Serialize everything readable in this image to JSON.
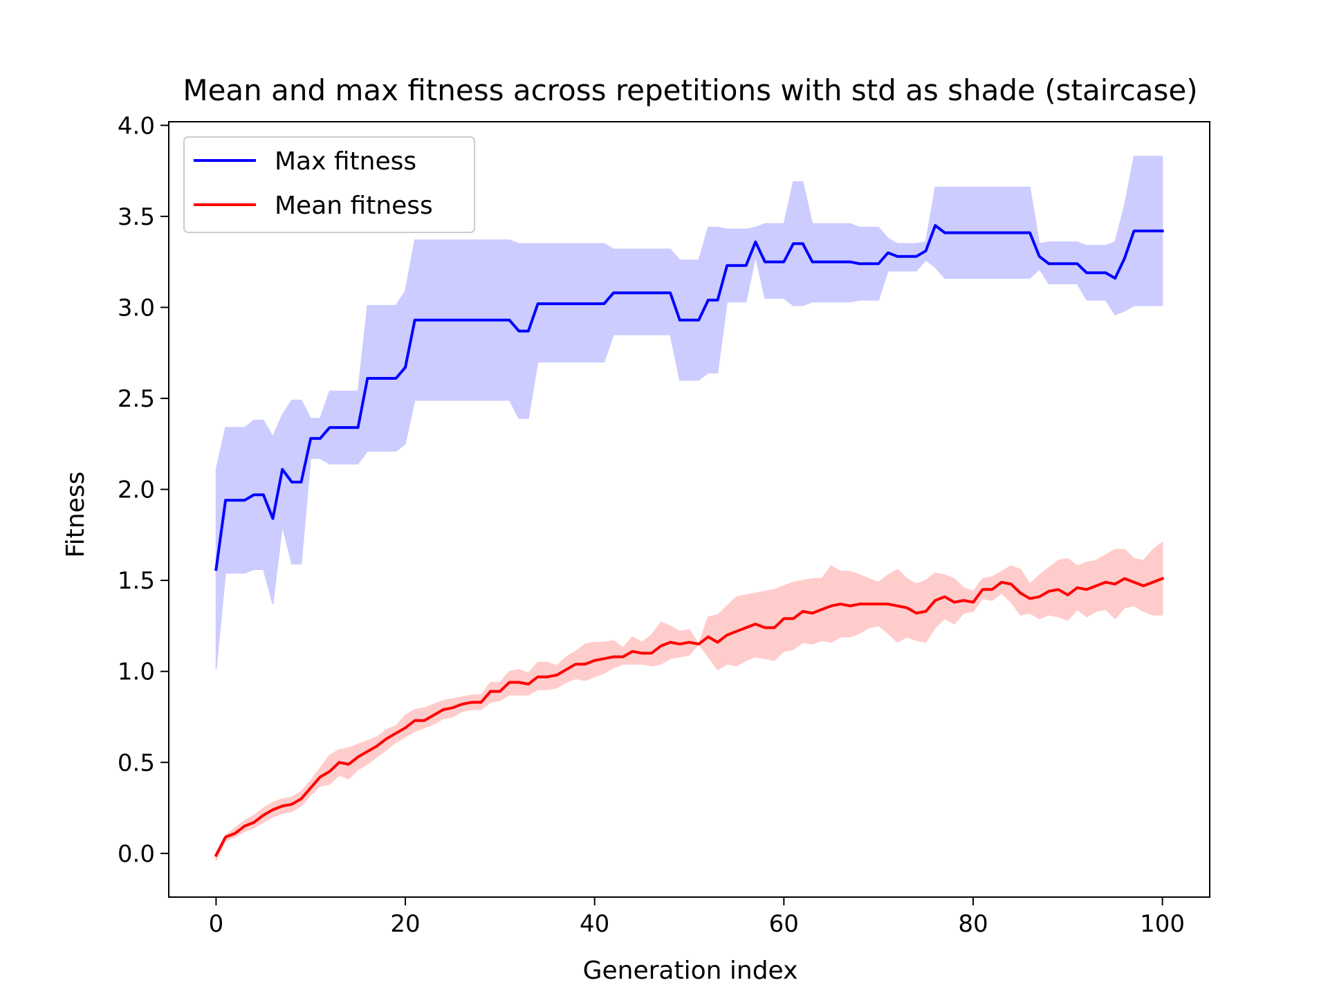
{
  "chart_data": {
    "type": "line",
    "title": "Mean and max fitness across repetitions with std as shade (staircase)",
    "xlabel": "Generation index",
    "ylabel": "Fitness",
    "xlim": [
      -5,
      105
    ],
    "ylim": [
      -0.24,
      4.02
    ],
    "xticks": [
      0,
      20,
      40,
      60,
      80,
      100
    ],
    "yticks": [
      0.0,
      0.5,
      1.0,
      1.5,
      2.0,
      2.5,
      3.0,
      3.5,
      4.0
    ],
    "xtick_labels": [
      "0",
      "20",
      "40",
      "60",
      "80",
      "100"
    ],
    "ytick_labels": [
      "0.0",
      "0.5",
      "1.0",
      "1.5",
      "2.0",
      "2.5",
      "3.0",
      "3.5",
      "4.0"
    ],
    "grid": false,
    "legend": {
      "position": "upper-left",
      "entries": [
        "Max fitness",
        "Mean fitness"
      ]
    },
    "series": [
      {
        "name": "Max fitness",
        "color": "#0000ff",
        "shade_color": "#ccccff",
        "x": [
          0,
          1,
          3,
          4,
          5,
          6,
          7,
          8,
          9,
          10,
          11,
          12,
          15,
          16,
          19,
          20,
          21,
          31,
          32,
          33,
          34,
          37,
          38,
          41,
          42,
          48,
          49,
          51,
          52,
          53,
          54,
          56,
          57,
          58,
          60,
          61,
          62,
          63,
          67,
          68,
          70,
          71,
          72,
          74,
          75,
          76,
          77,
          85,
          86,
          87,
          88,
          91,
          92,
          94,
          95,
          96,
          97,
          100
        ],
        "y": [
          1.56,
          1.94,
          1.94,
          1.97,
          1.97,
          1.84,
          2.11,
          2.04,
          2.04,
          2.28,
          2.28,
          2.34,
          2.34,
          2.61,
          2.61,
          2.67,
          2.93,
          2.93,
          2.87,
          2.87,
          3.02,
          3.02,
          3.02,
          3.02,
          3.08,
          3.08,
          2.93,
          2.93,
          3.04,
          3.04,
          3.23,
          3.23,
          3.36,
          3.25,
          3.25,
          3.35,
          3.35,
          3.25,
          3.25,
          3.24,
          3.24,
          3.3,
          3.28,
          3.28,
          3.31,
          3.45,
          3.41,
          3.41,
          3.41,
          3.28,
          3.24,
          3.24,
          3.19,
          3.19,
          3.16,
          3.27,
          3.42,
          3.42
        ],
        "upper": [
          2.11,
          2.34,
          2.34,
          2.38,
          2.38,
          2.29,
          2.41,
          2.49,
          2.49,
          2.39,
          2.39,
          2.54,
          2.54,
          3.01,
          3.01,
          3.09,
          3.37,
          3.37,
          3.35,
          3.35,
          3.35,
          3.35,
          3.35,
          3.35,
          3.32,
          3.32,
          3.26,
          3.26,
          3.44,
          3.44,
          3.43,
          3.43,
          3.44,
          3.46,
          3.46,
          3.69,
          3.69,
          3.46,
          3.46,
          3.44,
          3.44,
          3.38,
          3.35,
          3.35,
          3.36,
          3.66,
          3.66,
          3.66,
          3.66,
          3.35,
          3.36,
          3.36,
          3.34,
          3.34,
          3.36,
          3.56,
          3.83,
          3.83
        ],
        "lower": [
          1.01,
          1.54,
          1.54,
          1.56,
          1.56,
          1.37,
          1.8,
          1.59,
          1.59,
          2.17,
          2.17,
          2.14,
          2.14,
          2.21,
          2.21,
          2.25,
          2.49,
          2.49,
          2.39,
          2.39,
          2.7,
          2.7,
          2.7,
          2.7,
          2.85,
          2.85,
          2.6,
          2.6,
          2.64,
          2.64,
          3.03,
          3.03,
          3.28,
          3.05,
          3.05,
          3.01,
          3.01,
          3.03,
          3.03,
          3.04,
          3.04,
          3.2,
          3.2,
          3.2,
          3.26,
          3.22,
          3.16,
          3.16,
          3.16,
          3.21,
          3.13,
          3.13,
          3.04,
          3.04,
          2.96,
          2.98,
          3.01,
          3.01
        ]
      },
      {
        "name": "Mean fitness",
        "color": "#ff0000",
        "shade_color": "#ffcccc",
        "x": [
          0,
          1,
          2,
          3,
          4,
          5,
          6,
          7,
          8,
          9,
          10,
          11,
          12,
          13,
          14,
          15,
          16,
          17,
          18,
          19,
          20,
          21,
          22,
          23,
          24,
          25,
          26,
          27,
          28,
          29,
          30,
          31,
          32,
          33,
          34,
          35,
          36,
          37,
          38,
          39,
          40,
          41,
          42,
          43,
          44,
          45,
          46,
          47,
          48,
          49,
          50,
          51,
          52,
          53,
          54,
          55,
          56,
          57,
          58,
          59,
          60,
          61,
          62,
          63,
          64,
          65,
          66,
          67,
          68,
          69,
          70,
          71,
          72,
          73,
          74,
          75,
          76,
          77,
          78,
          79,
          80,
          81,
          82,
          83,
          84,
          85,
          86,
          87,
          88,
          89,
          90,
          91,
          92,
          93,
          94,
          95,
          96,
          97,
          98,
          99,
          100
        ],
        "y": [
          -0.01,
          0.09,
          0.11,
          0.15,
          0.17,
          0.21,
          0.24,
          0.26,
          0.27,
          0.3,
          0.36,
          0.42,
          0.45,
          0.5,
          0.49,
          0.53,
          0.56,
          0.59,
          0.63,
          0.66,
          0.69,
          0.73,
          0.73,
          0.76,
          0.79,
          0.8,
          0.82,
          0.83,
          0.83,
          0.89,
          0.89,
          0.94,
          0.94,
          0.93,
          0.97,
          0.97,
          0.98,
          1.01,
          1.04,
          1.04,
          1.06,
          1.07,
          1.08,
          1.08,
          1.11,
          1.1,
          1.1,
          1.14,
          1.16,
          1.15,
          1.16,
          1.15,
          1.19,
          1.16,
          1.2,
          1.22,
          1.24,
          1.26,
          1.24,
          1.24,
          1.29,
          1.29,
          1.33,
          1.32,
          1.34,
          1.36,
          1.37,
          1.36,
          1.37,
          1.37,
          1.37,
          1.37,
          1.36,
          1.35,
          1.32,
          1.33,
          1.39,
          1.41,
          1.38,
          1.39,
          1.38,
          1.45,
          1.45,
          1.49,
          1.48,
          1.43,
          1.4,
          1.41,
          1.44,
          1.45,
          1.42,
          1.46,
          1.45,
          1.47,
          1.49,
          1.48,
          1.51,
          1.49,
          1.47,
          1.49,
          1.51
        ],
        "upper": [
          0.0,
          0.1,
          0.14,
          0.18,
          0.21,
          0.25,
          0.28,
          0.3,
          0.31,
          0.34,
          0.4,
          0.47,
          0.54,
          0.57,
          0.58,
          0.6,
          0.62,
          0.64,
          0.68,
          0.7,
          0.76,
          0.79,
          0.8,
          0.82,
          0.84,
          0.85,
          0.86,
          0.87,
          0.87,
          0.94,
          0.94,
          1.0,
          1.01,
          0.99,
          1.05,
          1.05,
          1.03,
          1.08,
          1.11,
          1.15,
          1.16,
          1.16,
          1.17,
          1.13,
          1.19,
          1.16,
          1.2,
          1.27,
          1.25,
          1.22,
          1.23,
          1.15,
          1.3,
          1.31,
          1.36,
          1.41,
          1.42,
          1.43,
          1.44,
          1.45,
          1.47,
          1.49,
          1.5,
          1.51,
          1.51,
          1.58,
          1.55,
          1.55,
          1.53,
          1.51,
          1.49,
          1.53,
          1.56,
          1.51,
          1.48,
          1.5,
          1.54,
          1.53,
          1.51,
          1.46,
          1.44,
          1.51,
          1.52,
          1.55,
          1.58,
          1.56,
          1.48,
          1.53,
          1.57,
          1.61,
          1.62,
          1.58,
          1.6,
          1.61,
          1.64,
          1.67,
          1.67,
          1.62,
          1.61,
          1.67,
          1.71
        ],
        "lower": [
          -0.04,
          0.07,
          0.09,
          0.12,
          0.14,
          0.17,
          0.2,
          0.22,
          0.23,
          0.26,
          0.32,
          0.37,
          0.38,
          0.43,
          0.41,
          0.46,
          0.49,
          0.53,
          0.57,
          0.61,
          0.64,
          0.67,
          0.69,
          0.71,
          0.74,
          0.75,
          0.78,
          0.79,
          0.79,
          0.83,
          0.84,
          0.87,
          0.87,
          0.87,
          0.9,
          0.9,
          0.91,
          0.94,
          0.96,
          0.95,
          0.97,
          0.99,
          1.02,
          1.04,
          1.04,
          1.04,
          1.03,
          1.04,
          1.07,
          1.08,
          1.09,
          1.15,
          1.08,
          1.01,
          1.04,
          1.03,
          1.06,
          1.08,
          1.07,
          1.06,
          1.11,
          1.12,
          1.16,
          1.15,
          1.17,
          1.16,
          1.19,
          1.19,
          1.21,
          1.24,
          1.25,
          1.21,
          1.16,
          1.19,
          1.17,
          1.16,
          1.24,
          1.29,
          1.26,
          1.32,
          1.33,
          1.4,
          1.39,
          1.43,
          1.38,
          1.31,
          1.32,
          1.29,
          1.31,
          1.3,
          1.28,
          1.34,
          1.3,
          1.33,
          1.34,
          1.29,
          1.35,
          1.36,
          1.33,
          1.31,
          1.31
        ]
      }
    ]
  }
}
